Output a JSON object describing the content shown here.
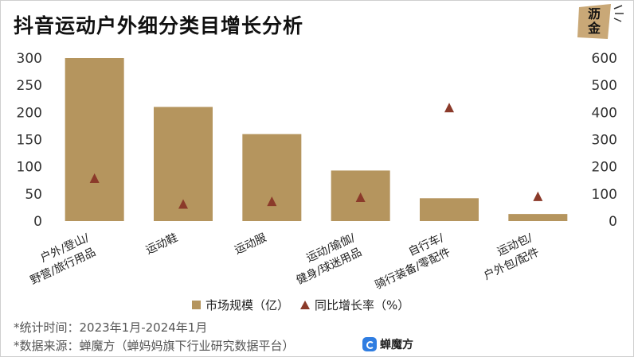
{
  "title": "抖音运动户外细分类目增长分析",
  "logo": {
    "text": "沥金",
    "icon": "leaf-logo-icon"
  },
  "chart_data": {
    "type": "bar",
    "categories": [
      [
        "户外/登山/",
        "野营/旅行用品"
      ],
      [
        "运动鞋"
      ],
      [
        "运动服"
      ],
      [
        "运动/瑜伽/",
        "健身/球迷用品"
      ],
      [
        "自行车/",
        "骑行装备/零配件"
      ],
      [
        "运动包/",
        "户外包/配件"
      ]
    ],
    "series": [
      {
        "name": "市场规模（亿）",
        "axis": "left",
        "mark": "bar",
        "color": "#b5955e",
        "values": [
          300,
          210,
          160,
          93,
          42,
          13
        ]
      },
      {
        "name": "同比增长率（%）",
        "axis": "right",
        "mark": "triangle",
        "color": "#8b3a2a",
        "values": [
          155,
          60,
          70,
          85,
          415,
          88
        ]
      }
    ],
    "y_left": {
      "ticks": [
        0,
        50,
        100,
        150,
        200,
        250,
        300
      ],
      "range": [
        0,
        300
      ]
    },
    "y_right": {
      "ticks": [
        0,
        100,
        200,
        300,
        400,
        500,
        600
      ],
      "range": [
        0,
        600
      ]
    }
  },
  "legend": {
    "bar_label": "市场规模（亿）",
    "marker_label": "同比增长率（%）"
  },
  "footnotes": {
    "stat_time": "*统计时间：2023年1月-2024年1月",
    "source": "*数据来源：蝉魔方（蝉妈妈旗下行业研究数据平台）"
  },
  "brand": {
    "name": "蝉魔方",
    "icon": "chanmofang-logo-icon"
  }
}
